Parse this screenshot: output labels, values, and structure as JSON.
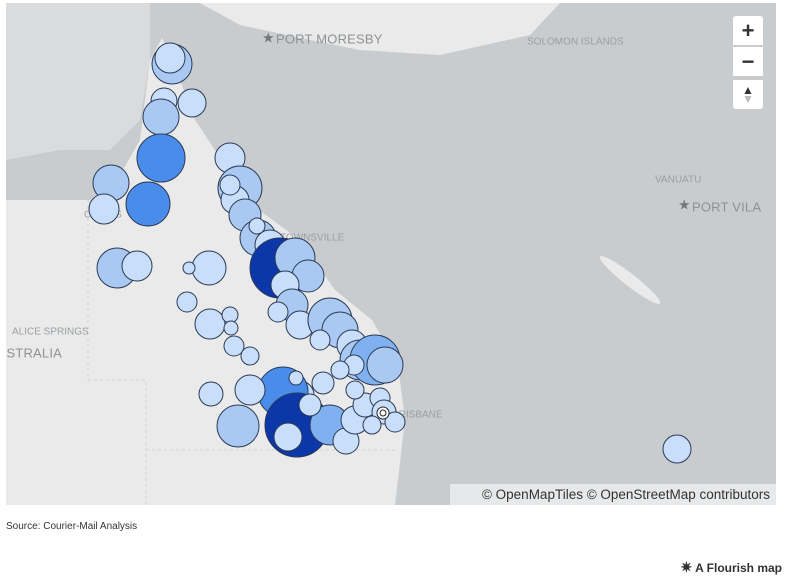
{
  "map": {
    "places": [
      "PORT MORESBY",
      "SOLOMON ISLANDS",
      "VANUATU",
      "PORT VILA",
      "ALICE SPRINGS",
      "AUSTRALIA",
      "TOWNSVILLE",
      "BRISBANE",
      "CAIRNS"
    ],
    "zoom_in": "+",
    "zoom_out": "−",
    "attribution": "© OpenMapTiles © OpenStreetMap contributors"
  },
  "footer": {
    "source": "Source: Courier-Mail Analysis",
    "credit": "A Flourish map"
  }
}
